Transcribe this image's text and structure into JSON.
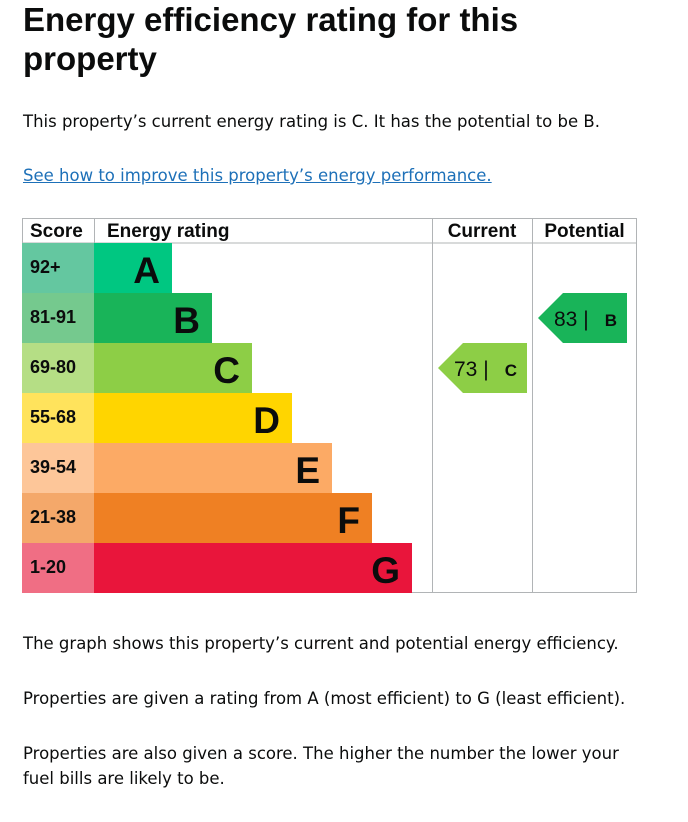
{
  "title": "Energy efficiency rating for this property",
  "intro": "This property’s current energy rating is C. It has the potential to be B.",
  "link": "See how to improve this property’s energy performance.",
  "chart_data": {
    "type": "table",
    "headers": {
      "score": "Score",
      "rating": "Energy rating",
      "current": "Current",
      "potential": "Potential"
    },
    "bands": [
      {
        "letter": "A",
        "score": "92+",
        "color": "#00c781",
        "light": "#64c7a0"
      },
      {
        "letter": "B",
        "score": "81-91",
        "color": "#19b459",
        "light": "#75c98e"
      },
      {
        "letter": "C",
        "score": "69-80",
        "color": "#8dce46",
        "light": "#b5de85"
      },
      {
        "letter": "D",
        "score": "55-68",
        "color": "#ffd500",
        "light": "#ffe35c"
      },
      {
        "letter": "E",
        "score": "39-54",
        "color": "#fcaa65",
        "light": "#fdc699"
      },
      {
        "letter": "F",
        "score": "21-38",
        "color": "#ef8023",
        "light": "#f4a86a"
      },
      {
        "letter": "G",
        "score": "1-20",
        "color": "#e9153b",
        "light": "#f06e84"
      }
    ],
    "current": {
      "score": 73,
      "letter": "C",
      "label": "73 |",
      "color": "#8dce46"
    },
    "potential": {
      "score": 83,
      "letter": "B",
      "label": "83 |",
      "color": "#19b459"
    }
  },
  "footer": [
    "The graph shows this property’s current and potential energy efficiency.",
    "Properties are given a rating from A (most efficient) to G (least efficient).",
    "Properties are also given a score. The higher the number the lower your fuel bills are likely to be."
  ]
}
